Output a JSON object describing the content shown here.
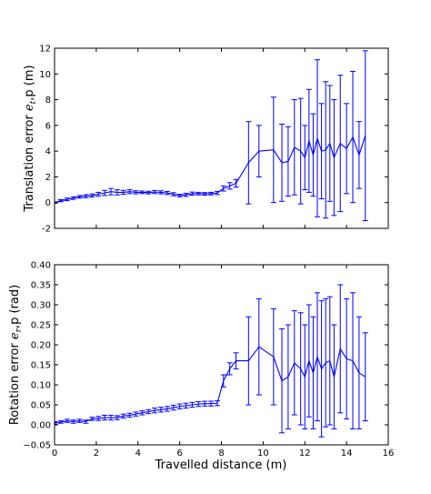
{
  "chart_data": [
    {
      "type": "line",
      "ylabel": "Translation error e_t,p (m)",
      "ylabel_main": "Translation error",
      "ylabel_sym": "e",
      "ylabel_sub": "t",
      "ylabel_tail": ",p (m)",
      "xlabel": "",
      "xlim": [
        0,
        16
      ],
      "ylim": [
        -2,
        12
      ],
      "yticks": [
        "-2",
        "0",
        "2",
        "4",
        "6",
        "8",
        "10",
        "12"
      ],
      "ytick_values": [
        -2,
        0,
        2,
        4,
        6,
        8,
        10,
        12
      ],
      "xticks": [
        0,
        2,
        4,
        6,
        8,
        10,
        12,
        14,
        16
      ],
      "grid": false,
      "color": "#0000ff",
      "series": [
        {
          "x": [
            0.0,
            0.3,
            0.6,
            0.9,
            1.2,
            1.5,
            1.8,
            2.1,
            2.4,
            2.7,
            3.0,
            3.3,
            3.6,
            3.9,
            4.2,
            4.5,
            4.8,
            5.1,
            5.4,
            5.7,
            6.0,
            6.3,
            6.6,
            6.9,
            7.2,
            7.5,
            7.8,
            8.1,
            8.4,
            8.7,
            9.3,
            9.8,
            10.5,
            10.9,
            11.2,
            11.5,
            11.8,
            12.0,
            12.2,
            12.4,
            12.6,
            12.8,
            13.0,
            13.2,
            13.4,
            13.7,
            14.0,
            14.3,
            14.6,
            14.9
          ],
          "values": [
            0.0,
            0.15,
            0.25,
            0.35,
            0.45,
            0.5,
            0.55,
            0.65,
            0.75,
            0.85,
            0.8,
            0.8,
            0.85,
            0.8,
            0.8,
            0.78,
            0.82,
            0.8,
            0.75,
            0.65,
            0.55,
            0.6,
            0.7,
            0.7,
            0.68,
            0.7,
            0.75,
            1.1,
            1.3,
            1.5,
            3.1,
            4.0,
            4.1,
            3.1,
            3.2,
            4.3,
            4.0,
            3.5,
            4.8,
            3.7,
            5.0,
            4.0,
            4.1,
            4.6,
            3.5,
            4.6,
            4.2,
            5.1,
            3.7,
            5.2
          ],
          "err": [
            0.05,
            0.08,
            0.1,
            0.1,
            0.1,
            0.12,
            0.12,
            0.15,
            0.2,
            0.25,
            0.2,
            0.15,
            0.15,
            0.12,
            0.1,
            0.1,
            0.12,
            0.12,
            0.12,
            0.12,
            0.1,
            0.12,
            0.12,
            0.1,
            0.1,
            0.1,
            0.12,
            0.2,
            0.25,
            0.3,
            3.2,
            2.0,
            4.1,
            3.0,
            2.7,
            3.7,
            4.1,
            2.5,
            4.0,
            3.2,
            6.1,
            3.7,
            5.3,
            4.5,
            4.5,
            5.3,
            3.5,
            5.1,
            2.6,
            6.6
          ]
        }
      ]
    },
    {
      "type": "line",
      "ylabel": "Rotation error e_r,p (rad)",
      "ylabel_main": "Rotation error",
      "ylabel_sym": "e",
      "ylabel_sub": "r",
      "ylabel_tail": ",p (rad)",
      "xlabel": "Travelled distance (m)",
      "xlim": [
        0,
        16
      ],
      "ylim": [
        -0.05,
        0.4
      ],
      "yticks": [
        "−0.05",
        "0.00",
        "0.05",
        "0.10",
        "0.15",
        "0.20",
        "0.25",
        "0.30",
        "0.35",
        "0.40"
      ],
      "ytick_values": [
        -0.05,
        0.0,
        0.05,
        0.1,
        0.15,
        0.2,
        0.25,
        0.3,
        0.35,
        0.4
      ],
      "xticks": [
        0,
        2,
        4,
        6,
        8,
        10,
        12,
        14,
        16
      ],
      "xtick_labels": [
        "0",
        "2",
        "4",
        "6",
        "8",
        "10",
        "12",
        "14",
        "16"
      ],
      "grid": false,
      "color": "#0000ff",
      "series": [
        {
          "x": [
            0.0,
            0.3,
            0.6,
            0.9,
            1.2,
            1.5,
            1.8,
            2.1,
            2.4,
            2.7,
            3.0,
            3.3,
            3.6,
            3.9,
            4.2,
            4.5,
            4.8,
            5.1,
            5.4,
            5.7,
            6.0,
            6.3,
            6.6,
            6.9,
            7.2,
            7.5,
            7.8,
            8.1,
            8.4,
            8.7,
            9.3,
            9.8,
            10.5,
            10.9,
            11.2,
            11.5,
            11.8,
            12.0,
            12.2,
            12.4,
            12.6,
            12.8,
            13.0,
            13.2,
            13.4,
            13.7,
            14.0,
            14.3,
            14.6,
            14.9
          ],
          "values": [
            0.005,
            0.007,
            0.01,
            0.008,
            0.01,
            0.008,
            0.015,
            0.016,
            0.018,
            0.018,
            0.018,
            0.022,
            0.024,
            0.027,
            0.03,
            0.033,
            0.036,
            0.038,
            0.04,
            0.043,
            0.046,
            0.048,
            0.05,
            0.052,
            0.053,
            0.053,
            0.054,
            0.11,
            0.14,
            0.16,
            0.16,
            0.195,
            0.17,
            0.11,
            0.12,
            0.155,
            0.14,
            0.12,
            0.16,
            0.13,
            0.17,
            0.14,
            0.155,
            0.16,
            0.12,
            0.19,
            0.165,
            0.16,
            0.13,
            0.12
          ],
          "err": [
            0.003,
            0.003,
            0.004,
            0.004,
            0.004,
            0.004,
            0.004,
            0.005,
            0.006,
            0.006,
            0.005,
            0.005,
            0.005,
            0.005,
            0.005,
            0.005,
            0.006,
            0.006,
            0.006,
            0.006,
            0.006,
            0.006,
            0.006,
            0.006,
            0.006,
            0.006,
            0.006,
            0.015,
            0.015,
            0.02,
            0.11,
            0.12,
            0.12,
            0.13,
            0.13,
            0.13,
            0.14,
            0.13,
            0.14,
            0.14,
            0.16,
            0.17,
            0.16,
            0.16,
            0.13,
            0.16,
            0.15,
            0.17,
            0.14,
            0.11
          ]
        }
      ]
    }
  ]
}
